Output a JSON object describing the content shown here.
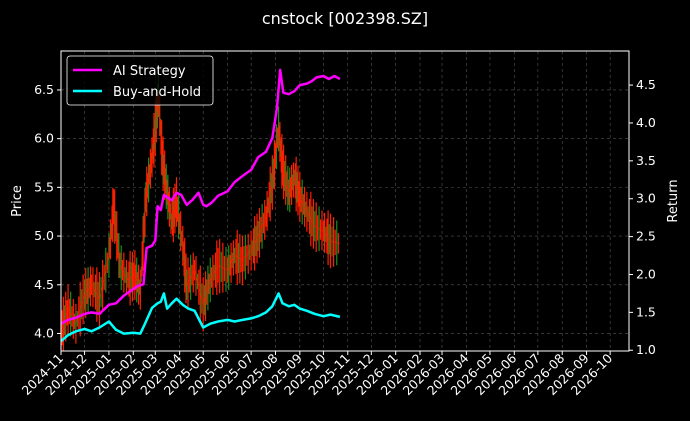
{
  "chart_data": {
    "type": "line",
    "title": "cnstock [002398.SZ]",
    "ylabel": "Price",
    "y2label": "Return",
    "ylim": [
      3.82,
      6.9
    ],
    "y2lim": [
      0.99,
      4.95
    ],
    "x_range": [
      "2024-11-01",
      "2026-10-25"
    ],
    "yticks": [
      4.0,
      4.5,
      5.0,
      5.5,
      6.0,
      6.5
    ],
    "ytick_labels": [
      "4.0",
      "4.5",
      "5.0",
      "5.5",
      "6.0",
      "6.5"
    ],
    "y2ticks": [
      1.0,
      1.5,
      2.0,
      2.5,
      3.0,
      3.5,
      4.0,
      4.5
    ],
    "y2tick_labels": [
      "1.0",
      "1.5",
      "2.0",
      "2.5",
      "3.0",
      "3.5",
      "4.0",
      "4.5"
    ],
    "xticks": [
      "2024-11-01",
      "2024-12-01",
      "2025-01-01",
      "2025-02-01",
      "2025-03-01",
      "2025-04-01",
      "2025-05-01",
      "2025-06-01",
      "2025-07-01",
      "2025-08-01",
      "2025-09-01",
      "2025-10-01",
      "2025-11-01",
      "2025-12-01",
      "2026-01-01",
      "2026-02-01",
      "2026-03-01",
      "2026-04-01",
      "2026-05-01",
      "2026-06-01",
      "2026-07-01",
      "2026-08-01",
      "2026-09-01",
      "2026-10-01"
    ],
    "xtick_labels": [
      "2024-11",
      "2024-12",
      "2025-01",
      "2025-02",
      "2025-03",
      "2025-04",
      "2025-05",
      "2025-06",
      "2025-07",
      "2025-08",
      "2025-09",
      "2025-10",
      "2025-11",
      "2025-12",
      "2026-01",
      "2026-02",
      "2026-03",
      "2026-04",
      "2026-05",
      "2026-06",
      "2026-07",
      "2026-08",
      "2026-09",
      "2026-10"
    ],
    "grid": true,
    "legend_position": "upper-left",
    "series": [
      {
        "name": "AI Strategy",
        "axis": "right",
        "color": "#ff00ff",
        "points": [
          [
            "2024-11-01",
            1.35
          ],
          [
            "2024-11-10",
            1.4
          ],
          [
            "2024-11-20",
            1.43
          ],
          [
            "2024-12-01",
            1.48
          ],
          [
            "2024-12-10",
            1.5
          ],
          [
            "2024-12-20",
            1.48
          ],
          [
            "2025-01-01",
            1.6
          ],
          [
            "2025-01-10",
            1.62
          ],
          [
            "2025-01-20",
            1.72
          ],
          [
            "2025-01-31",
            1.8
          ],
          [
            "2025-02-07",
            1.85
          ],
          [
            "2025-02-14",
            1.87
          ],
          [
            "2025-02-18",
            2.35
          ],
          [
            "2025-02-25",
            2.38
          ],
          [
            "2025-03-01",
            2.45
          ],
          [
            "2025-03-04",
            2.9
          ],
          [
            "2025-03-08",
            2.85
          ],
          [
            "2025-03-12",
            3.05
          ],
          [
            "2025-03-16",
            3.02
          ],
          [
            "2025-03-22",
            2.98
          ],
          [
            "2025-03-28",
            3.08
          ],
          [
            "2025-04-03",
            3.05
          ],
          [
            "2025-04-10",
            2.92
          ],
          [
            "2025-04-17",
            2.98
          ],
          [
            "2025-04-25",
            3.08
          ],
          [
            "2025-05-01",
            2.92
          ],
          [
            "2025-05-05",
            2.9
          ],
          [
            "2025-05-12",
            2.95
          ],
          [
            "2025-05-20",
            3.04
          ],
          [
            "2025-06-01",
            3.1
          ],
          [
            "2025-06-10",
            3.22
          ],
          [
            "2025-06-20",
            3.3
          ],
          [
            "2025-07-01",
            3.38
          ],
          [
            "2025-07-10",
            3.55
          ],
          [
            "2025-07-20",
            3.62
          ],
          [
            "2025-07-28",
            3.8
          ],
          [
            "2025-08-03",
            4.2
          ],
          [
            "2025-08-07",
            4.7
          ],
          [
            "2025-08-11",
            4.4
          ],
          [
            "2025-08-18",
            4.38
          ],
          [
            "2025-08-25",
            4.42
          ],
          [
            "2025-09-01",
            4.5
          ],
          [
            "2025-09-10",
            4.52
          ],
          [
            "2025-09-16",
            4.55
          ],
          [
            "2025-09-22",
            4.6
          ],
          [
            "2025-10-01",
            4.62
          ],
          [
            "2025-10-08",
            4.58
          ],
          [
            "2025-10-15",
            4.62
          ],
          [
            "2025-10-22",
            4.58
          ]
        ]
      },
      {
        "name": "Buy-and-Hold",
        "axis": "right",
        "color": "#00ffff",
        "points": [
          [
            "2024-11-01",
            1.12
          ],
          [
            "2024-11-10",
            1.2
          ],
          [
            "2024-11-20",
            1.25
          ],
          [
            "2024-12-01",
            1.28
          ],
          [
            "2024-12-10",
            1.25
          ],
          [
            "2024-12-20",
            1.3
          ],
          [
            "2025-01-01",
            1.38
          ],
          [
            "2025-01-10",
            1.27
          ],
          [
            "2025-01-20",
            1.22
          ],
          [
            "2025-02-01",
            1.23
          ],
          [
            "2025-02-10",
            1.22
          ],
          [
            "2025-02-15",
            1.33
          ],
          [
            "2025-02-25",
            1.56
          ],
          [
            "2025-03-04",
            1.62
          ],
          [
            "2025-03-08",
            1.64
          ],
          [
            "2025-03-12",
            1.75
          ],
          [
            "2025-03-16",
            1.55
          ],
          [
            "2025-03-22",
            1.62
          ],
          [
            "2025-03-28",
            1.68
          ],
          [
            "2025-04-05",
            1.6
          ],
          [
            "2025-04-12",
            1.55
          ],
          [
            "2025-04-20",
            1.52
          ],
          [
            "2025-05-01",
            1.3
          ],
          [
            "2025-05-10",
            1.35
          ],
          [
            "2025-05-20",
            1.38
          ],
          [
            "2025-06-01",
            1.4
          ],
          [
            "2025-06-10",
            1.38
          ],
          [
            "2025-06-20",
            1.4
          ],
          [
            "2025-07-01",
            1.42
          ],
          [
            "2025-07-10",
            1.45
          ],
          [
            "2025-07-20",
            1.5
          ],
          [
            "2025-07-28",
            1.58
          ],
          [
            "2025-08-05",
            1.75
          ],
          [
            "2025-08-10",
            1.62
          ],
          [
            "2025-08-18",
            1.58
          ],
          [
            "2025-08-25",
            1.6
          ],
          [
            "2025-09-01",
            1.55
          ],
          [
            "2025-09-10",
            1.52
          ],
          [
            "2025-09-20",
            1.48
          ],
          [
            "2025-10-01",
            1.45
          ],
          [
            "2025-10-10",
            1.47
          ],
          [
            "2025-10-22",
            1.44
          ]
        ]
      },
      {
        "name": "Price",
        "axis": "left",
        "color": "#ff2000",
        "points": [
          [
            "2024-11-01",
            4.02
          ],
          [
            "2024-11-10",
            4.25
          ],
          [
            "2024-11-20",
            4.1
          ],
          [
            "2024-12-01",
            4.4
          ],
          [
            "2024-12-10",
            4.5
          ],
          [
            "2024-12-20",
            4.35
          ],
          [
            "2025-01-01",
            4.8
          ],
          [
            "2025-01-07",
            5.3
          ],
          [
            "2025-01-15",
            4.7
          ],
          [
            "2025-01-25",
            4.55
          ],
          [
            "2025-02-03",
            4.6
          ],
          [
            "2025-02-10",
            4.45
          ],
          [
            "2025-02-17",
            5.4
          ],
          [
            "2025-02-24",
            5.75
          ],
          [
            "2025-03-01",
            6.1
          ],
          [
            "2025-03-05",
            6.45
          ],
          [
            "2025-03-10",
            5.8
          ],
          [
            "2025-03-16",
            5.45
          ],
          [
            "2025-03-22",
            5.15
          ],
          [
            "2025-03-28",
            5.35
          ],
          [
            "2025-04-05",
            4.9
          ],
          [
            "2025-04-10",
            4.5
          ],
          [
            "2025-04-20",
            4.65
          ],
          [
            "2025-05-01",
            4.3
          ],
          [
            "2025-05-10",
            4.55
          ],
          [
            "2025-05-20",
            4.7
          ],
          [
            "2025-06-01",
            4.65
          ],
          [
            "2025-06-10",
            4.8
          ],
          [
            "2025-06-20",
            4.75
          ],
          [
            "2025-07-01",
            4.85
          ],
          [
            "2025-07-10",
            5.0
          ],
          [
            "2025-07-20",
            5.2
          ],
          [
            "2025-07-28",
            5.55
          ],
          [
            "2025-08-05",
            6.1
          ],
          [
            "2025-08-10",
            5.7
          ],
          [
            "2025-08-18",
            5.45
          ],
          [
            "2025-08-25",
            5.6
          ],
          [
            "2025-09-01",
            5.4
          ],
          [
            "2025-09-10",
            5.25
          ],
          [
            "2025-09-20",
            5.1
          ],
          [
            "2025-10-01",
            5.05
          ],
          [
            "2025-10-10",
            4.95
          ],
          [
            "2025-10-22",
            4.92
          ]
        ]
      }
    ]
  }
}
